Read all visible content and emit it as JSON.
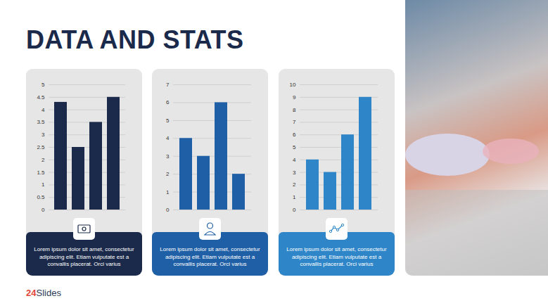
{
  "title": "DATA AND STATS",
  "footer": "24Slides",
  "chart_data": [
    {
      "type": "bar",
      "categories": [
        null,
        null,
        null,
        null
      ],
      "values": [
        4.3,
        2.5,
        3.5,
        4.5
      ],
      "color": "#1b2a4a",
      "ylim": [
        0,
        5
      ],
      "yticks": [
        0,
        0.5,
        1,
        1.5,
        2,
        2.5,
        3,
        3.5,
        4,
        4.5,
        5
      ],
      "grid": true,
      "tick_labels": "y",
      "caption": "Lorem ipsum dolor sit amet, consectetur adipiscing elit. Etiam vulputate est a convallis placerat. Orci varius"
    },
    {
      "type": "bar",
      "categories": [
        null,
        null,
        null,
        null
      ],
      "values": [
        4,
        3,
        6,
        2
      ],
      "color": "#1f5fa6",
      "ylim": [
        0,
        7
      ],
      "yticks": [
        0,
        1,
        2,
        3,
        4,
        5,
        6,
        7
      ],
      "grid": true,
      "tick_labels": "y",
      "caption": "Lorem ipsum dolor sit amet, consectetur adipiscing elit. Etiam vulputate est a convallis placerat. Orci varius"
    },
    {
      "type": "bar",
      "categories": [
        null,
        null,
        null,
        null
      ],
      "values": [
        4,
        3,
        6,
        9
      ],
      "color": "#2e86c8",
      "ylim": [
        0,
        10
      ],
      "yticks": [
        0,
        1,
        2,
        3,
        4,
        5,
        6,
        7,
        8,
        9,
        10
      ],
      "grid": true,
      "tick_labels": "y",
      "caption": "Lorem ipsum dolor sit amet, consectetur adipiscing elit. Etiam vulputate est a convallis placerat. Orci varius"
    }
  ]
}
